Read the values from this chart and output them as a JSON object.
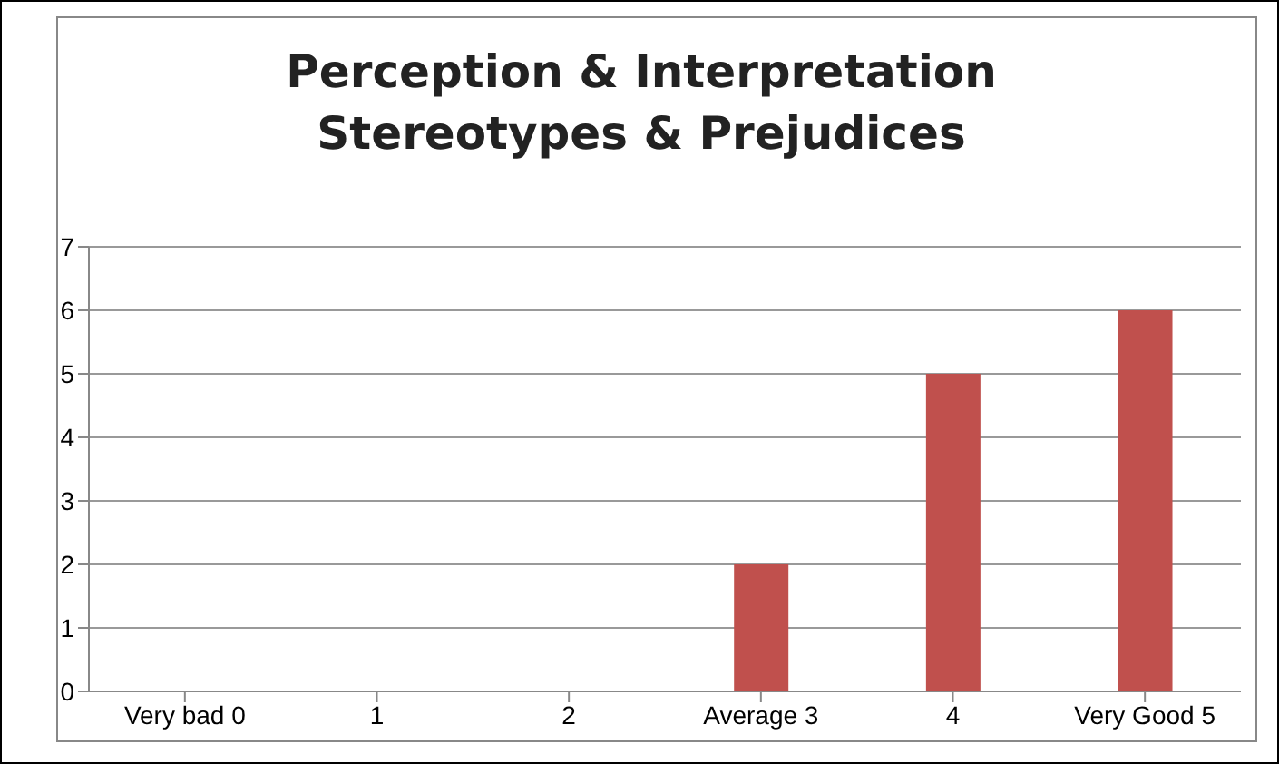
{
  "chart_data": {
    "type": "bar",
    "title": "Perception & Interpretation\nStereotypes & Prejudices",
    "categories": [
      "Very bad 0",
      "1",
      "2",
      "Average 3",
      "4",
      "Very Good 5"
    ],
    "values": [
      0,
      0,
      0,
      2,
      5,
      6
    ],
    "color": "#c0504d",
    "ylim": [
      0,
      7
    ],
    "yticks": [
      0,
      1,
      2,
      3,
      4,
      5,
      6,
      7
    ],
    "grid": "y",
    "legend": false
  }
}
